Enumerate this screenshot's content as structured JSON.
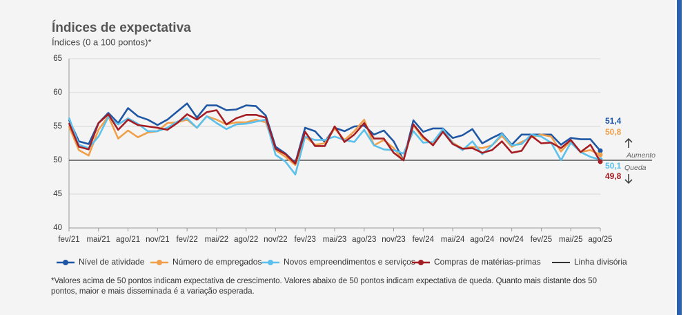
{
  "chart_data": {
    "type": "line",
    "title": "Índices de expectativa",
    "subtitle": "Índices (0 a 100 pontos)*",
    "footnote": "*Valores acima de 50 pontos indicam expectativa de crescimento. Valores abaixo de 50 pontos indicam expectativa de queda. Quanto mais distante dos 50 pontos, maior e mais disseminada é a variação esperada.",
    "annotations": [
      "Aumento",
      "Queda"
    ],
    "categories": [
      "fev/21",
      null,
      null,
      "mai/21",
      null,
      null,
      "ago/21",
      null,
      null,
      "nov/21",
      null,
      null,
      "fev/22",
      null,
      null,
      "mai/22",
      null,
      null,
      "ago/22",
      null,
      null,
      "nov/22",
      null,
      null,
      "fev/23",
      null,
      null,
      "mai/23",
      null,
      null,
      "ago/23",
      null,
      null,
      "nov/23",
      null,
      null,
      "fev/24",
      null,
      null,
      "mai/24",
      null,
      null,
      "ago/24",
      null,
      null,
      "nov/24",
      null,
      null,
      "fev/25",
      null,
      null,
      "mai/25",
      null,
      null,
      "ago/25"
    ],
    "ylim": [
      40,
      65
    ],
    "yticks": [
      40,
      45,
      50,
      55,
      60,
      65
    ],
    "grid": true,
    "reference_line": {
      "name": "Linha divisória",
      "value": 50,
      "color": "#333333"
    },
    "series": [
      {
        "name": "Nível de atividade",
        "color": "#1f57a4",
        "values": [
          56,
          52.8,
          52.4,
          55.5,
          57,
          55.5,
          57.7,
          56.5,
          56,
          55.2,
          56,
          57.2,
          58.4,
          56.3,
          58.1,
          58.1,
          57.4,
          57.5,
          58.1,
          58,
          56.6,
          52,
          51,
          49.6,
          54.8,
          54.3,
          52.7,
          54.8,
          54.3,
          55,
          55.1,
          53.8,
          54.4,
          52.8,
          50,
          55.9,
          54.2,
          54.7,
          54.7,
          53.3,
          53.7,
          54.6,
          52.5,
          53.3,
          54,
          52.3,
          53.8,
          53.8,
          53.8,
          53.8,
          52.3,
          53.3,
          53.1,
          53.1,
          51.4
        ],
        "value_labels": [
          null,
          null,
          null,
          null,
          null,
          null,
          null,
          null,
          null,
          null,
          null,
          null,
          null,
          null,
          null,
          null,
          null,
          null,
          null,
          null,
          null,
          null,
          null,
          null,
          null,
          null,
          null,
          null,
          null,
          null,
          null,
          null,
          null,
          null,
          null,
          null,
          null,
          null,
          null,
          null,
          null,
          null,
          null,
          null,
          null,
          null,
          null,
          null,
          null,
          null,
          null,
          null,
          null,
          null,
          "51,4"
        ]
      },
      {
        "name": "Número de empregados",
        "color": "#f0a04b",
        "values": [
          55,
          51.5,
          50.7,
          54.5,
          56.5,
          53.2,
          54.4,
          53.4,
          54.1,
          54.3,
          55.5,
          55.6,
          56,
          54.8,
          56.5,
          56,
          55.3,
          55.6,
          55.6,
          56,
          55.6,
          51.5,
          50.5,
          49.3,
          53.5,
          52.3,
          52.5,
          54.7,
          53,
          54.3,
          56,
          52.2,
          53,
          51.8,
          50,
          55.2,
          53.2,
          52.4,
          54.5,
          52.6,
          51.7,
          52,
          51.8,
          52.2,
          53.6,
          52,
          52.7,
          53.4,
          53.8,
          53.5,
          51.3,
          52.9,
          51.2,
          51.5,
          50.8
        ],
        "value_labels": [
          null,
          null,
          null,
          null,
          null,
          null,
          null,
          null,
          null,
          null,
          null,
          null,
          null,
          null,
          null,
          null,
          null,
          null,
          null,
          null,
          null,
          null,
          null,
          null,
          null,
          null,
          null,
          null,
          null,
          null,
          null,
          null,
          null,
          null,
          null,
          null,
          null,
          null,
          null,
          null,
          null,
          null,
          null,
          null,
          null,
          null,
          null,
          null,
          null,
          null,
          null,
          null,
          null,
          null,
          "50,8"
        ]
      },
      {
        "name": "Novos empreendimentos e serviços",
        "color": "#5bc0eb",
        "values": [
          56.3,
          52.3,
          51.8,
          53.5,
          56.4,
          55.3,
          56.2,
          55.4,
          54.3,
          54.3,
          54.8,
          55.7,
          56.2,
          54.8,
          56.5,
          55.5,
          54.6,
          55.3,
          55.4,
          55.7,
          56,
          50.8,
          49.8,
          47.9,
          53.5,
          53,
          53,
          53.5,
          53,
          52.7,
          54.5,
          52.2,
          51.6,
          51.5,
          51,
          54.3,
          52.6,
          52.7,
          54.6,
          52.5,
          51.5,
          52.8,
          50.9,
          52.2,
          53.9,
          52.2,
          52.4,
          53.8,
          53.5,
          52.6,
          50,
          52.6,
          51.2,
          50.5,
          50.1
        ],
        "value_labels": [
          null,
          null,
          null,
          null,
          null,
          null,
          null,
          null,
          null,
          null,
          null,
          null,
          null,
          null,
          null,
          null,
          null,
          null,
          null,
          null,
          null,
          null,
          null,
          null,
          null,
          null,
          null,
          null,
          null,
          null,
          null,
          null,
          null,
          null,
          null,
          null,
          null,
          null,
          null,
          null,
          null,
          null,
          null,
          null,
          null,
          null,
          null,
          null,
          null,
          null,
          null,
          null,
          null,
          null,
          "50,1"
        ]
      },
      {
        "name": "Compras de matérias-primas",
        "color": "#a51d24",
        "values": [
          55.5,
          52,
          51.6,
          55.5,
          56.8,
          54.5,
          56,
          55.2,
          55,
          54.8,
          54.5,
          55.5,
          56.8,
          56,
          57.1,
          57.4,
          55.3,
          56.2,
          56.7,
          56.7,
          56.3,
          51.7,
          50.9,
          49.5,
          54.2,
          52.1,
          52.1,
          55,
          52.7,
          53.8,
          55.5,
          53.2,
          53.2,
          51.1,
          50,
          55.3,
          53.5,
          52.2,
          54.2,
          52.4,
          51.7,
          51.8,
          51.1,
          51.5,
          52.8,
          51.1,
          51.4,
          53.6,
          52.5,
          52.6,
          51.8,
          53,
          51.2,
          52.3,
          49.8
        ],
        "value_labels": [
          null,
          null,
          null,
          null,
          null,
          null,
          null,
          null,
          null,
          null,
          null,
          null,
          null,
          null,
          null,
          null,
          null,
          null,
          null,
          null,
          null,
          null,
          null,
          null,
          null,
          null,
          null,
          null,
          null,
          null,
          null,
          null,
          null,
          null,
          null,
          null,
          null,
          null,
          null,
          null,
          null,
          null,
          null,
          null,
          null,
          null,
          null,
          null,
          null,
          null,
          null,
          null,
          null,
          null,
          "49,8"
        ]
      }
    ]
  }
}
